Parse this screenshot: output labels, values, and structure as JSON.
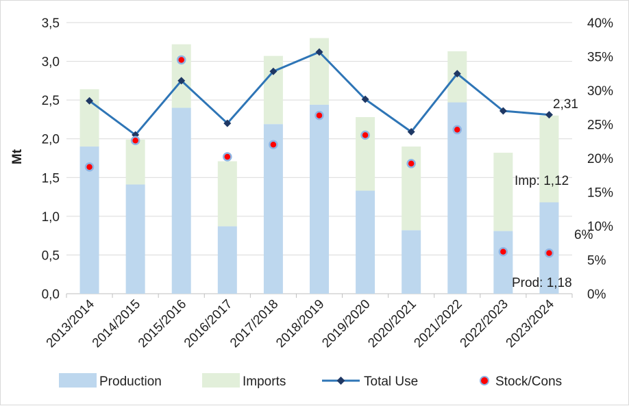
{
  "chart_data": {
    "type": "bar",
    "title": "",
    "ylabel": "Mt",
    "y2label": "",
    "categories": [
      "2013/2014",
      "2014/2015",
      "2015/2016",
      "2016/2017",
      "2017/2018",
      "2018/2019",
      "2019/2020",
      "2020/2021",
      "2021/2022",
      "2022/2023",
      "2023/2024"
    ],
    "ylim": [
      0,
      3.5
    ],
    "y_ticks": [
      "0,0",
      "0,5",
      "1,0",
      "1,5",
      "2,0",
      "2,5",
      "3,0",
      "3,5"
    ],
    "y2lim": [
      0,
      40
    ],
    "y2_ticks": [
      "0%",
      "5%",
      "10%",
      "15%",
      "20%",
      "25%",
      "30%",
      "35%",
      "40%"
    ],
    "grid": true,
    "legend_position": "bottom",
    "series": [
      {
        "name": "Production",
        "type": "bar-stacked",
        "color": "#bdd7ee",
        "values": [
          1.9,
          1.41,
          2.4,
          0.87,
          2.19,
          2.44,
          1.33,
          0.82,
          2.47,
          0.81,
          1.18
        ]
      },
      {
        "name": "Imports",
        "type": "bar-stacked",
        "color": "#e2efda",
        "values": [
          0.74,
          0.58,
          0.82,
          0.84,
          0.88,
          0.86,
          0.95,
          1.08,
          0.66,
          1.01,
          1.12
        ]
      },
      {
        "name": "Total Use",
        "type": "line",
        "color": "#2e75b6",
        "marker": "diamond",
        "values": [
          2.49,
          2.05,
          2.75,
          2.2,
          2.87,
          3.12,
          2.51,
          2.09,
          2.84,
          2.36,
          2.31
        ]
      },
      {
        "name": "Stock/Cons",
        "type": "scatter",
        "axis": "secondary",
        "color": "#ff0000",
        "edge_color": "#8fb4e3",
        "values": [
          18.7,
          22.6,
          34.5,
          20.2,
          22.0,
          26.3,
          23.4,
          19.2,
          24.2,
          6.2,
          6.0
        ]
      }
    ],
    "annotations": {
      "total_last": "2,31",
      "imports_last": "Imp:  1,12",
      "stock_last": "6%",
      "production_last": "Prod:  1,18"
    }
  }
}
